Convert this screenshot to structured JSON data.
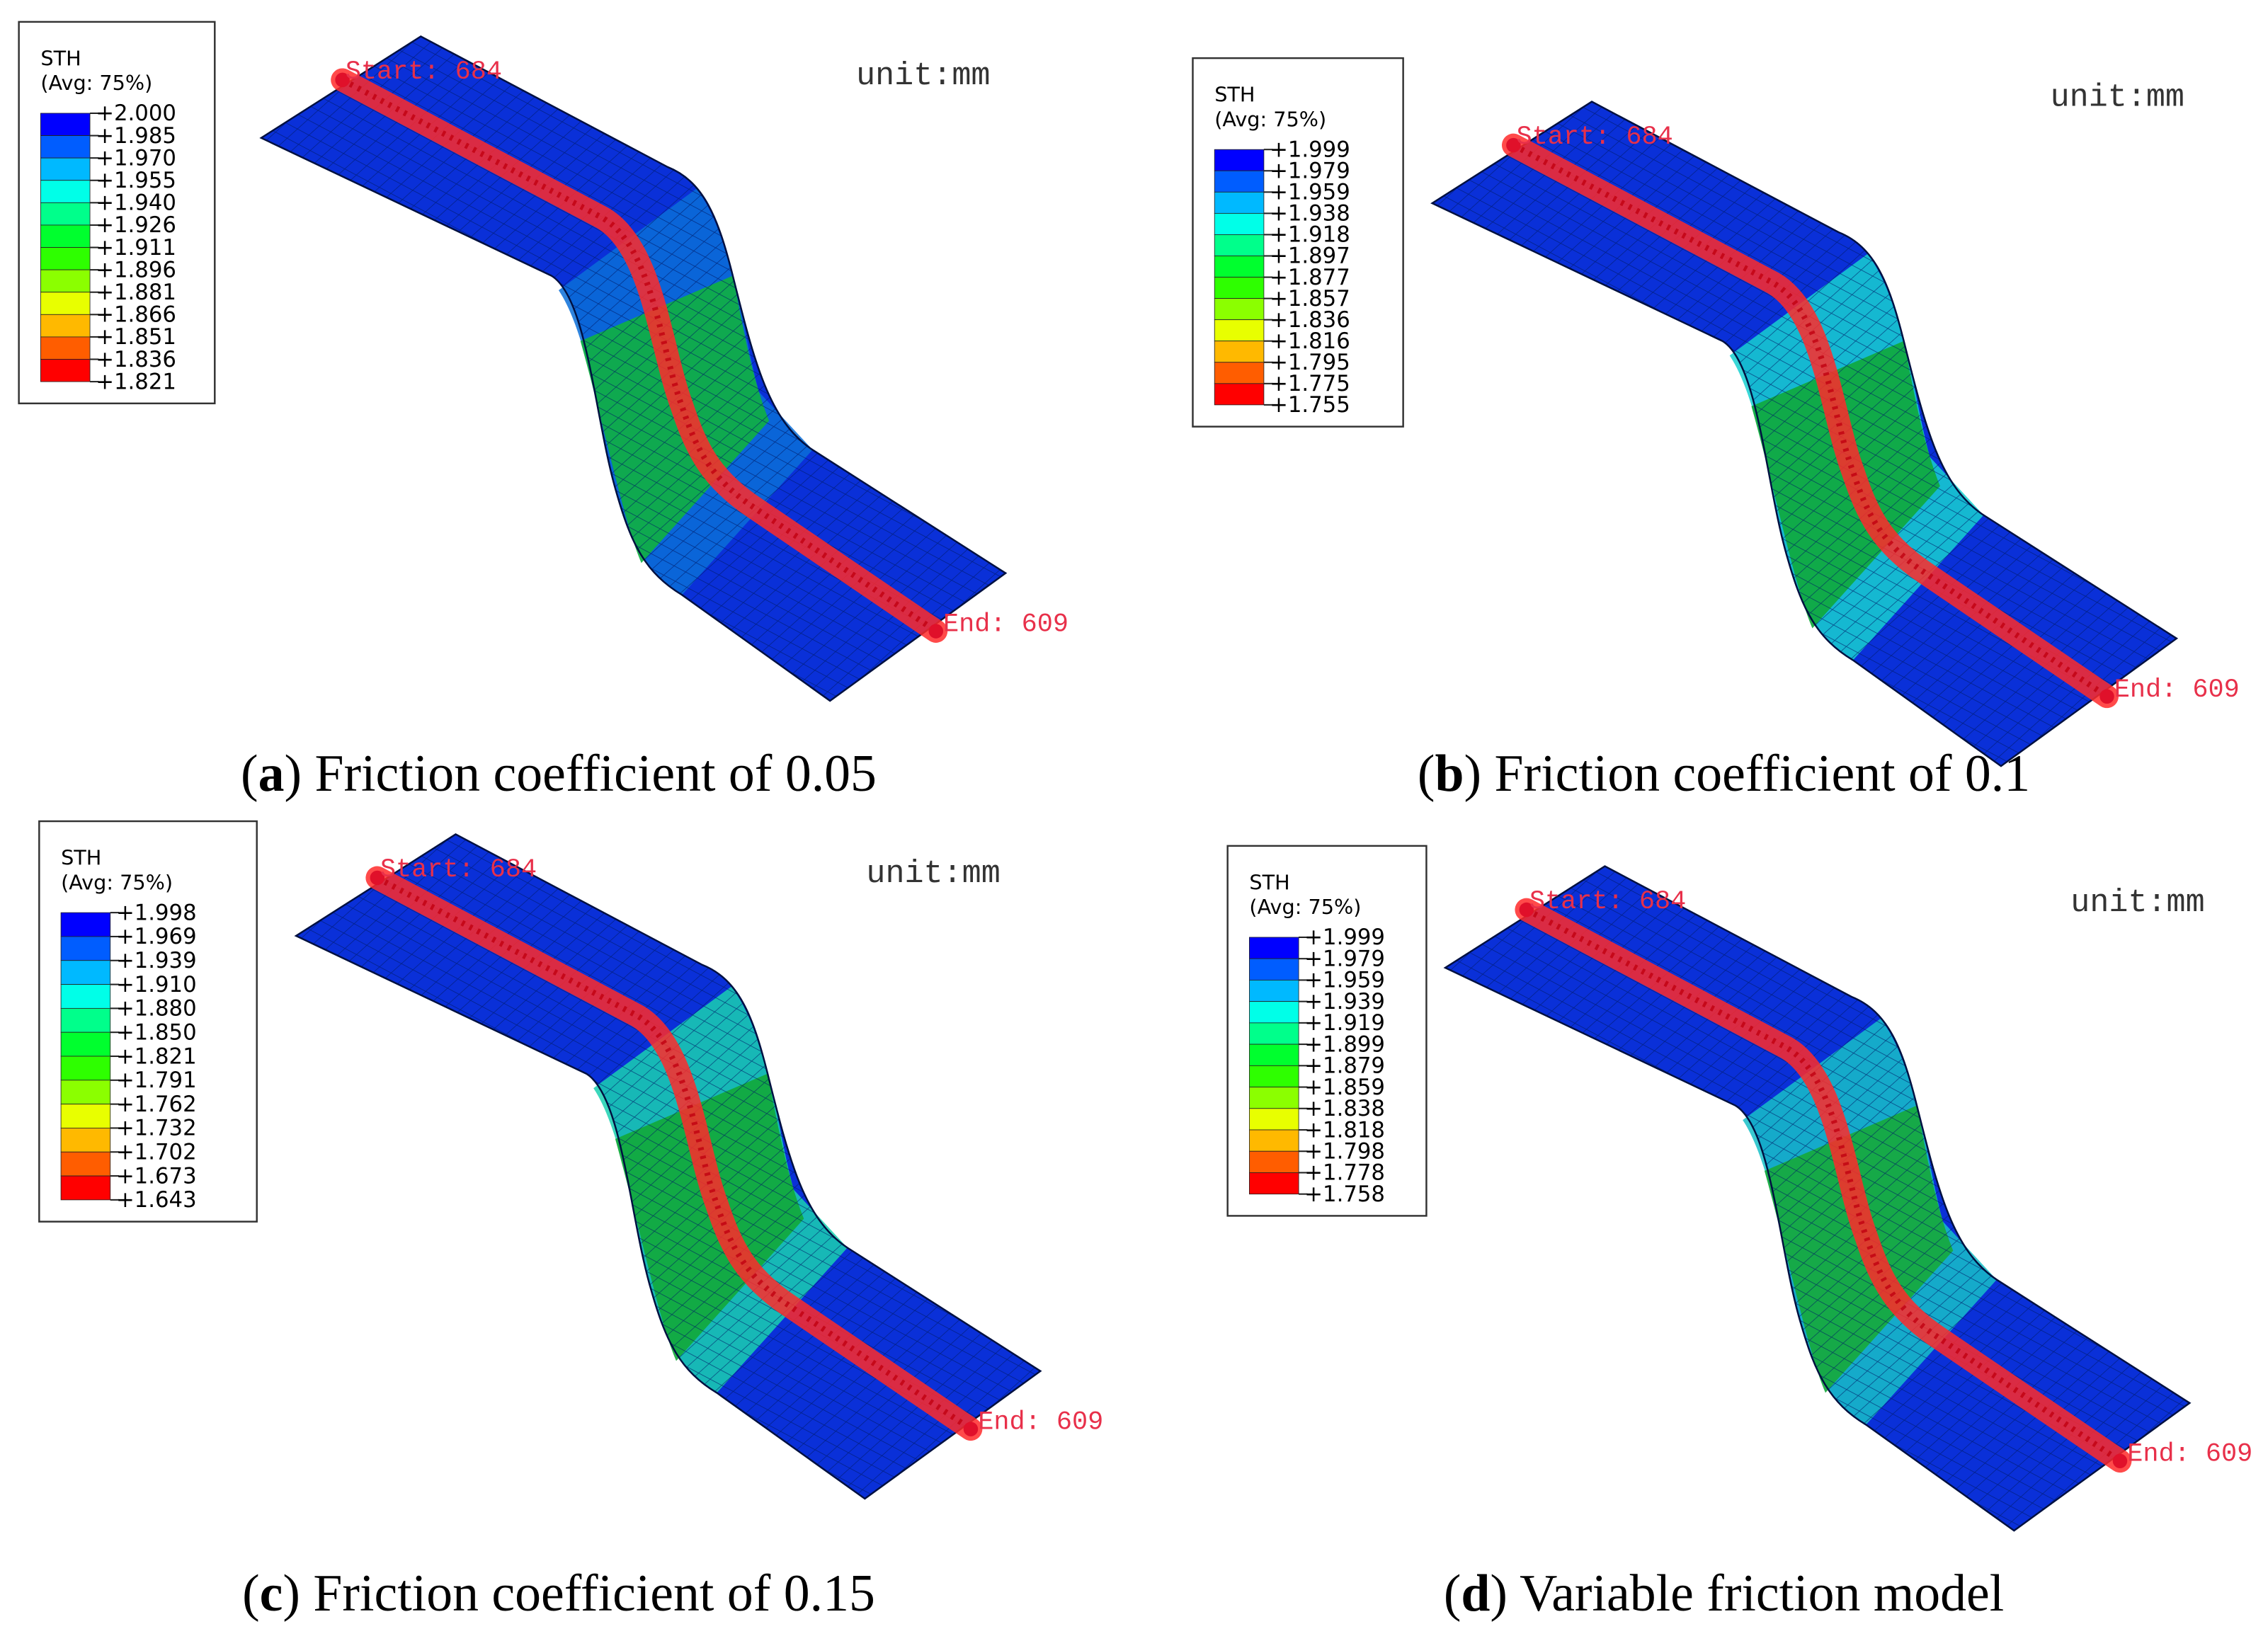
{
  "legend_colors": [
    "#0000ff",
    "#005dff",
    "#00b9ff",
    "#00ffe8",
    "#00ff8b",
    "#00ff2e",
    "#2eff00",
    "#8bff00",
    "#e8ff00",
    "#ffb900",
    "#ff5d00",
    "#ff0000"
  ],
  "panels": [
    {
      "legend": {
        "title": "STH",
        "subtitle": "(Avg: 75%)",
        "labels": [
          "+2.000",
          "+1.985",
          "+1.970",
          "+1.955",
          "+1.940",
          "+1.926",
          "+1.911",
          "+1.896",
          "+1.881",
          "+1.866",
          "+1.851",
          "+1.836",
          "+1.821"
        ]
      },
      "unit": "unit:mm",
      "start": "Start: 684",
      "end": "End: 609",
      "caption": [
        "(",
        "a",
        ") Friction coefficient of 0.05"
      ]
    },
    {
      "legend": {
        "title": "STH",
        "subtitle": "(Avg: 75%)",
        "labels": [
          "+1.999",
          "+1.979",
          "+1.959",
          "+1.938",
          "+1.918",
          "+1.897",
          "+1.877",
          "+1.857",
          "+1.836",
          "+1.816",
          "+1.795",
          "+1.775",
          "+1.755"
        ]
      },
      "unit": "unit:mm",
      "start": "Start: 684",
      "end": "End: 609",
      "caption": [
        "(",
        "b",
        ") Friction coefficient of 0.1"
      ]
    },
    {
      "legend": {
        "title": "STH",
        "subtitle": "(Avg: 75%)",
        "labels": [
          "+1.998",
          "+1.969",
          "+1.939",
          "+1.910",
          "+1.880",
          "+1.850",
          "+1.821",
          "+1.791",
          "+1.762",
          "+1.732",
          "+1.702",
          "+1.673",
          "+1.643"
        ]
      },
      "unit": "unit:mm",
      "start": "Start: 684",
      "end": "End: 609",
      "caption": [
        "(",
        "c",
        ") Friction coefficient of 0.15"
      ]
    },
    {
      "legend": {
        "title": "STH",
        "subtitle": "(Avg: 75%)",
        "labels": [
          "+1.999",
          "+1.979",
          "+1.959",
          "+1.939",
          "+1.919",
          "+1.899",
          "+1.879",
          "+1.859",
          "+1.838",
          "+1.818",
          "+1.798",
          "+1.778",
          "+1.758"
        ]
      },
      "unit": "unit:mm",
      "start": "Start: 684",
      "end": "End: 609",
      "caption": [
        "(",
        "d",
        ") Variable friction model"
      ]
    }
  ]
}
